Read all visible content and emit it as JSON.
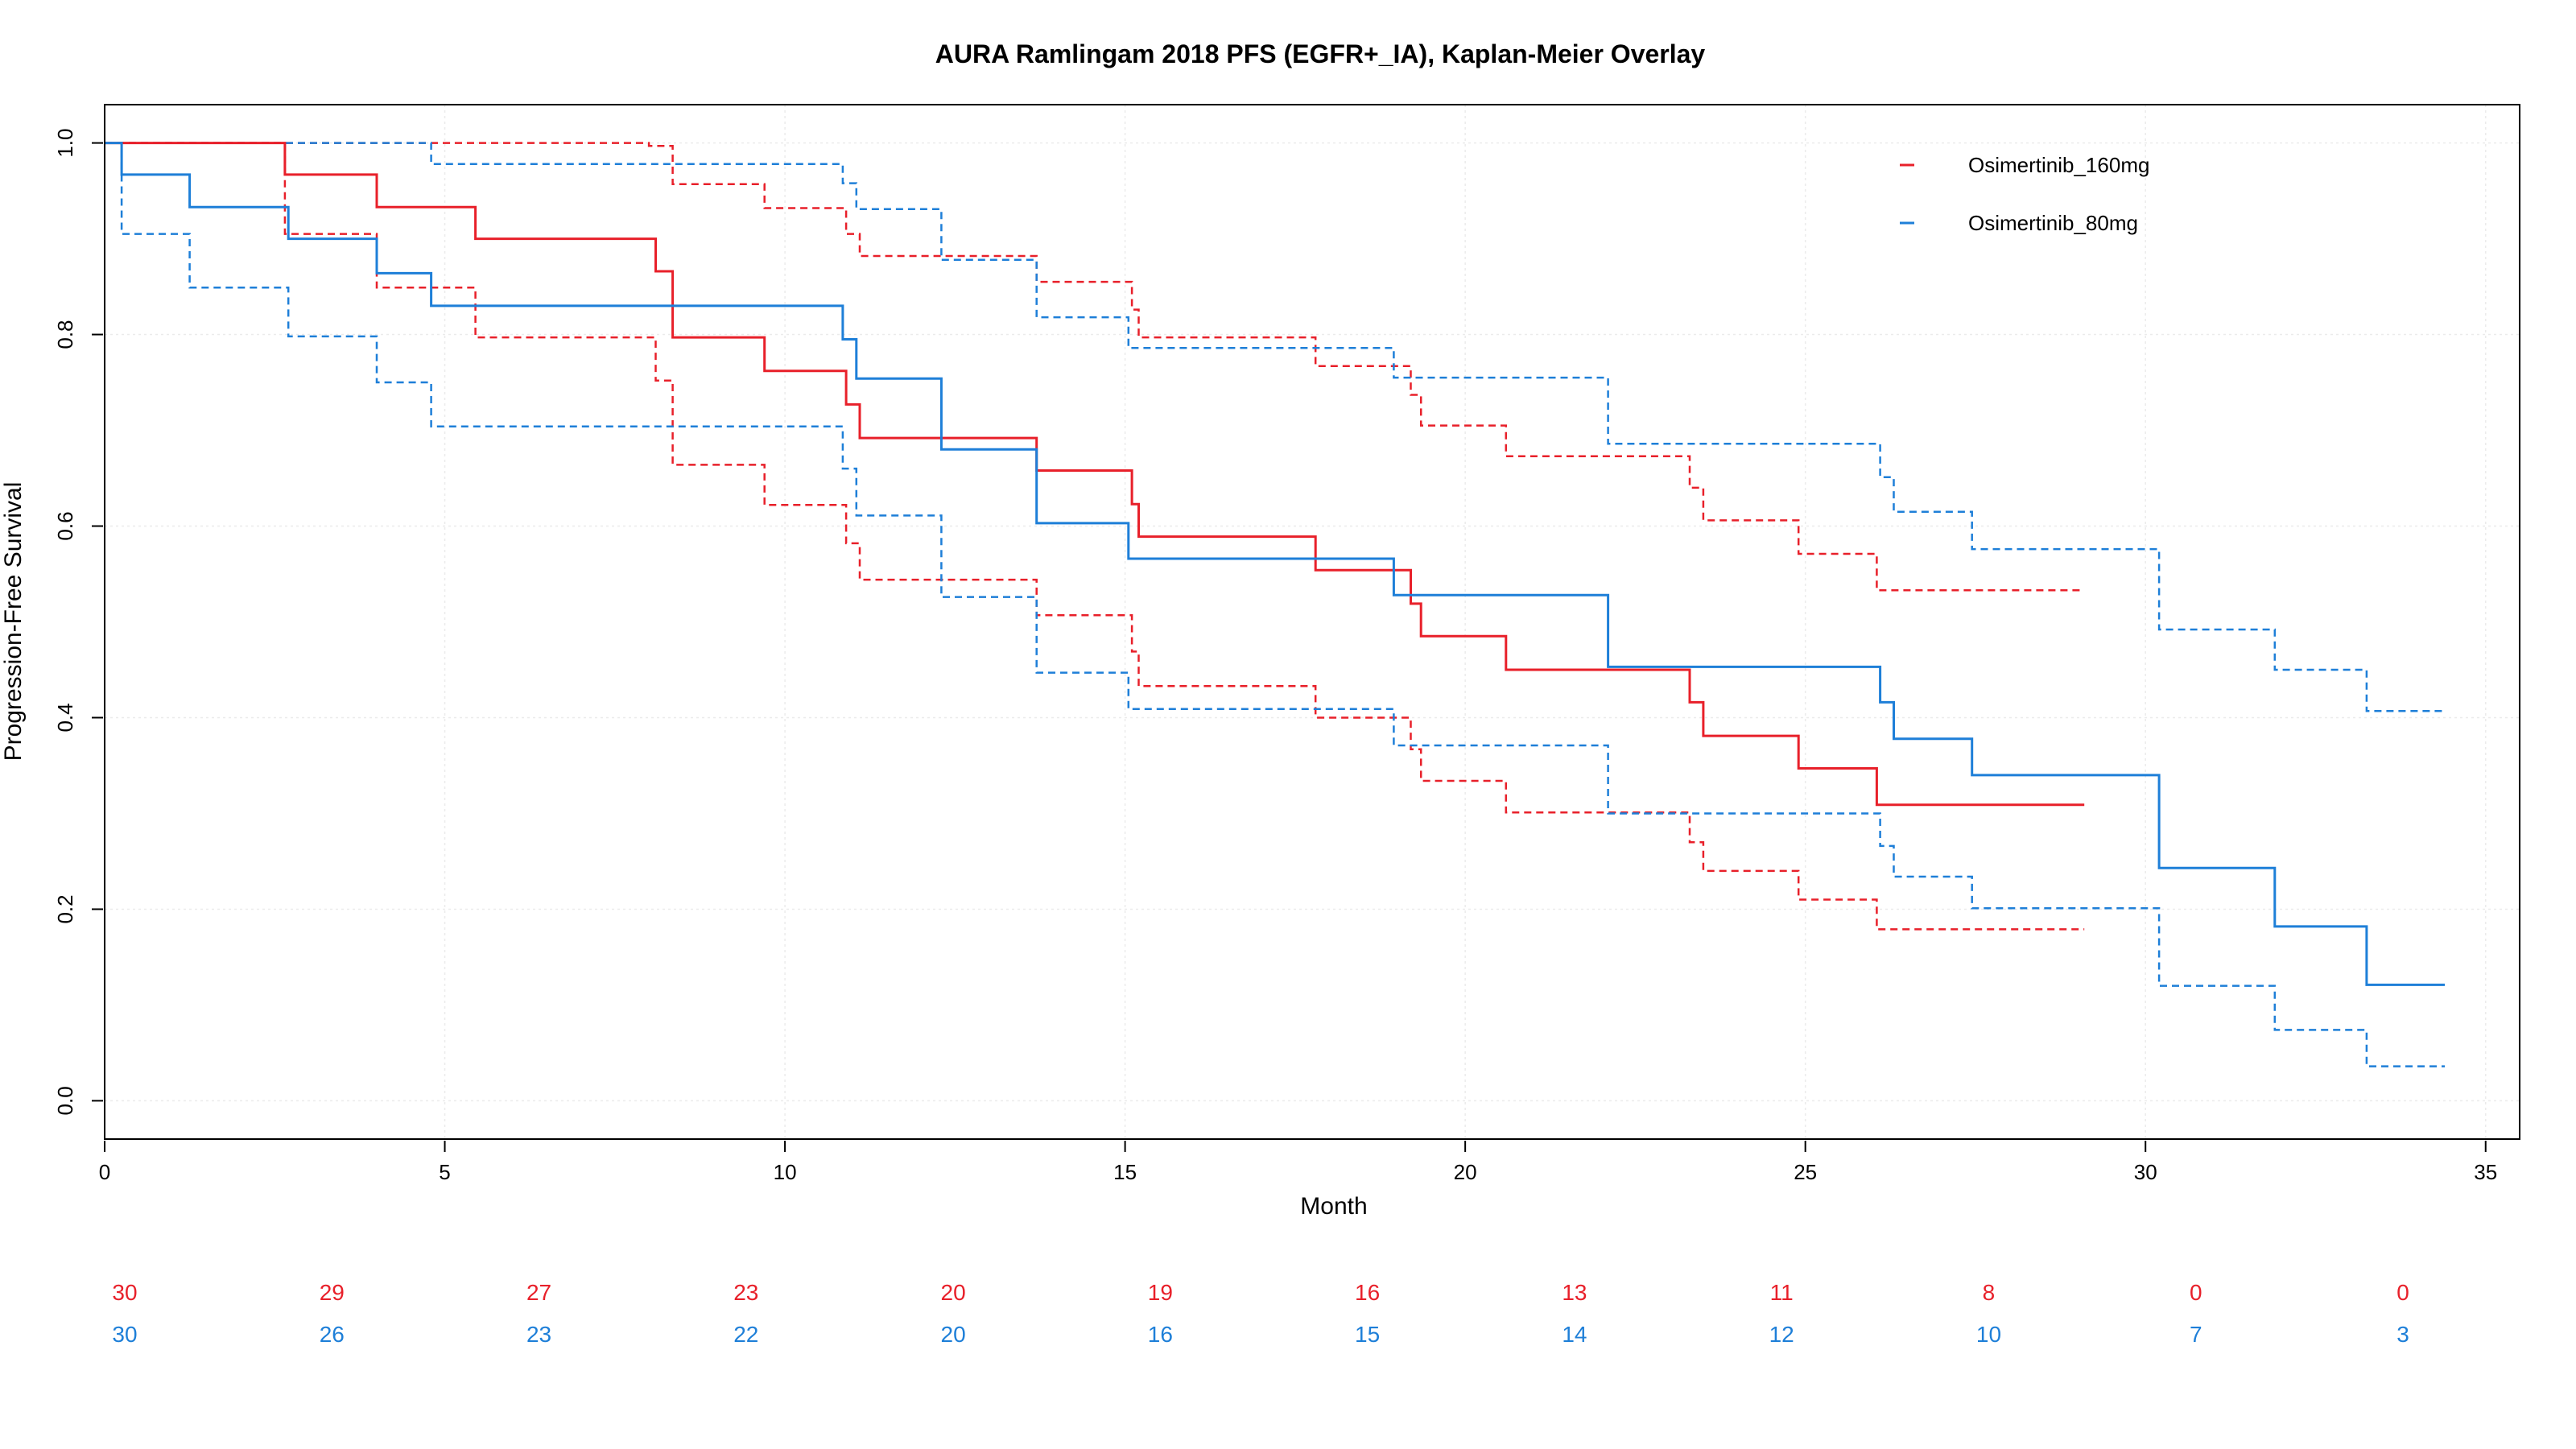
{
  "chart_data": {
    "type": "line",
    "title": "AURA Ramlingam 2018 PFS (EGFR+_IA), Kaplan-Meier Overlay",
    "xlabel": "Month",
    "ylabel": "Progression-Free Survival",
    "xlim": [
      0,
      35.5
    ],
    "ylim": [
      -0.04,
      1.04
    ],
    "xticks": [
      "0",
      "5",
      "10",
      "15",
      "20",
      "25",
      "30",
      "35"
    ],
    "yticks": [
      "0.0",
      "0.2",
      "0.4",
      "0.6",
      "0.8",
      "1.0"
    ],
    "grid": true,
    "legend_position": "top-right",
    "series": [
      {
        "name": "Osimertinib_160mg",
        "color": "#e8202a",
        "steps": [
          [
            0,
            1.0
          ],
          [
            2.65,
            0.967
          ],
          [
            4.0,
            0.933
          ],
          [
            5.45,
            0.9
          ],
          [
            8.1,
            0.866
          ],
          [
            8.35,
            0.797
          ],
          [
            9.7,
            0.762
          ],
          [
            10.9,
            0.727
          ],
          [
            11.1,
            0.692
          ],
          [
            13.7,
            0.658
          ],
          [
            15.1,
            0.623
          ],
          [
            15.2,
            0.589
          ],
          [
            17.8,
            0.554
          ],
          [
            19.2,
            0.519
          ],
          [
            19.35,
            0.485
          ],
          [
            20.6,
            0.45
          ],
          [
            23.3,
            0.416
          ],
          [
            23.5,
            0.381
          ],
          [
            24.9,
            0.347
          ],
          [
            26.05,
            0.309
          ],
          [
            29.1,
            0.309
          ]
        ],
        "ci_upper": [
          [
            0,
            1.0
          ],
          [
            8.0,
            0.997
          ],
          [
            8.35,
            0.957
          ],
          [
            9.7,
            0.932
          ],
          [
            10.9,
            0.905
          ],
          [
            11.1,
            0.882
          ],
          [
            13.7,
            0.855
          ],
          [
            15.1,
            0.826
          ],
          [
            15.2,
            0.797
          ],
          [
            17.8,
            0.767
          ],
          [
            19.2,
            0.737
          ],
          [
            19.35,
            0.705
          ],
          [
            20.6,
            0.673
          ],
          [
            23.3,
            0.64
          ],
          [
            23.5,
            0.606
          ],
          [
            24.9,
            0.571
          ],
          [
            26.05,
            0.533
          ],
          [
            29.1,
            0.533
          ]
        ],
        "ci_lower": [
          [
            0,
            1.0
          ],
          [
            2.65,
            0.905
          ],
          [
            4.0,
            0.849
          ],
          [
            5.45,
            0.797
          ],
          [
            8.1,
            0.752
          ],
          [
            8.35,
            0.664
          ],
          [
            9.7,
            0.622
          ],
          [
            10.9,
            0.582
          ],
          [
            11.1,
            0.544
          ],
          [
            13.7,
            0.507
          ],
          [
            15.1,
            0.469
          ],
          [
            15.2,
            0.433
          ],
          [
            17.8,
            0.4
          ],
          [
            19.2,
            0.367
          ],
          [
            19.35,
            0.334
          ],
          [
            20.6,
            0.301
          ],
          [
            23.3,
            0.27
          ],
          [
            23.5,
            0.24
          ],
          [
            24.9,
            0.21
          ],
          [
            26.05,
            0.179
          ],
          [
            29.1,
            0.179
          ]
        ]
      },
      {
        "name": "Osimertinib_80mg",
        "color": "#1e7fd8",
        "steps": [
          [
            0,
            1.0
          ],
          [
            0.25,
            0.967
          ],
          [
            1.25,
            0.933
          ],
          [
            2.7,
            0.9
          ],
          [
            4.0,
            0.864
          ],
          [
            4.8,
            0.83
          ],
          [
            10.85,
            0.795
          ],
          [
            11.05,
            0.754
          ],
          [
            12.3,
            0.68
          ],
          [
            13.7,
            0.603
          ],
          [
            15.05,
            0.566
          ],
          [
            18.95,
            0.528
          ],
          [
            22.1,
            0.453
          ],
          [
            26.1,
            0.416
          ],
          [
            26.3,
            0.378
          ],
          [
            27.45,
            0.34
          ],
          [
            30.2,
            0.34
          ],
          [
            30.2,
            0.243
          ],
          [
            31.9,
            0.182
          ],
          [
            33.25,
            0.121
          ],
          [
            34.4,
            0.121
          ]
        ],
        "ci_upper": [
          [
            0,
            1.0
          ],
          [
            4.8,
            0.978
          ],
          [
            10.85,
            0.958
          ],
          [
            11.05,
            0.931
          ],
          [
            12.3,
            0.878
          ],
          [
            13.7,
            0.818
          ],
          [
            15.05,
            0.786
          ],
          [
            18.95,
            0.755
          ],
          [
            22.1,
            0.686
          ],
          [
            26.1,
            0.651
          ],
          [
            26.3,
            0.615
          ],
          [
            27.45,
            0.576
          ],
          [
            30.2,
            0.492
          ],
          [
            31.9,
            0.45
          ],
          [
            33.25,
            0.407
          ],
          [
            34.4,
            0.407
          ]
        ],
        "ci_lower": [
          [
            0,
            1.0
          ],
          [
            0.25,
            0.905
          ],
          [
            1.25,
            0.849
          ],
          [
            2.7,
            0.798
          ],
          [
            4.0,
            0.75
          ],
          [
            4.8,
            0.704
          ],
          [
            10.85,
            0.66
          ],
          [
            11.05,
            0.611
          ],
          [
            12.3,
            0.526
          ],
          [
            13.7,
            0.447
          ],
          [
            15.05,
            0.409
          ],
          [
            18.95,
            0.371
          ],
          [
            22.1,
            0.3
          ],
          [
            26.1,
            0.266
          ],
          [
            26.3,
            0.234
          ],
          [
            27.45,
            0.201
          ],
          [
            30.2,
            0.12
          ],
          [
            31.9,
            0.074
          ],
          [
            33.25,
            0.036
          ],
          [
            34.4,
            0.036
          ]
        ]
      }
    ],
    "risk_table": {
      "times": [
        0,
        3,
        6,
        9,
        12,
        15,
        18,
        21,
        24,
        27,
        30,
        33
      ],
      "rows": [
        {
          "name": "Osimertinib_160mg",
          "color": "#e8202a",
          "values": [
            "30",
            "29",
            "27",
            "23",
            "20",
            "19",
            "16",
            "13",
            "11",
            "8",
            "0",
            "0"
          ]
        },
        {
          "name": "Osimertinib_80mg",
          "color": "#1e7fd8",
          "values": [
            "30",
            "26",
            "23",
            "22",
            "20",
            "16",
            "15",
            "14",
            "12",
            "10",
            "7",
            "3"
          ]
        }
      ]
    }
  }
}
